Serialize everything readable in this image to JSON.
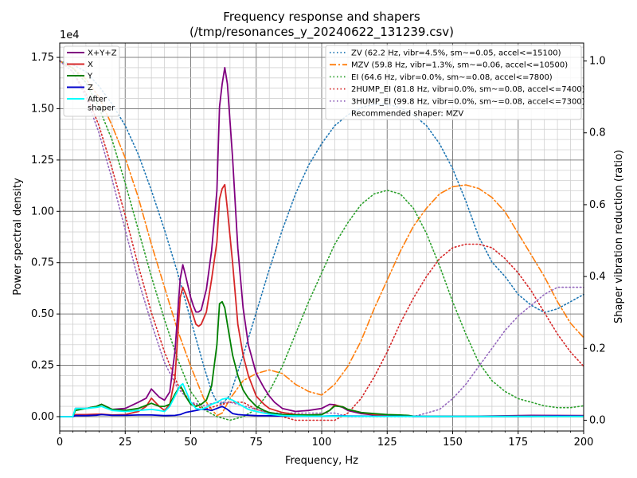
{
  "chart_data": {
    "type": "line",
    "title": "Frequency response and shapers",
    "subtitle": "(/tmp/resonances_y_20240622_131239.csv)",
    "xlabel": "Frequency, Hz",
    "ylabel": "Power spectral density",
    "y2label": "Shaper vibration reduction (ratio)",
    "y_offset_label": "1e4",
    "xlim": [
      0,
      200
    ],
    "ylim": [
      -700,
      18200
    ],
    "y2lim": [
      -0.03,
      1.05
    ],
    "grid": true,
    "x_major_ticks": [
      0,
      25,
      50,
      75,
      100,
      125,
      150,
      175,
      200
    ],
    "x_tick_labels": [
      "0",
      "25",
      "50",
      "75",
      "100",
      "125",
      "150",
      "175",
      "200"
    ],
    "y_major_ticks": [
      0,
      2500,
      5000,
      7500,
      10000,
      12500,
      15000,
      17500
    ],
    "y_tick_labels": [
      "0.00",
      "0.25",
      "0.50",
      "0.75",
      "1.00",
      "1.25",
      "1.50",
      "1.75"
    ],
    "y2_major_ticks": [
      0.0,
      0.2,
      0.4,
      0.6,
      0.8,
      1.0
    ],
    "y2_tick_labels": [
      "0.0",
      "0.2",
      "0.4",
      "0.6",
      "0.8",
      "1.0"
    ],
    "legend_left": {
      "placement": "top-left",
      "entries": [
        "X+Y+Z",
        "X",
        "Y",
        "Z",
        "After\nshaper"
      ]
    },
    "legend_right": {
      "placement": "top-right",
      "entries": [
        "ZV (62.2 Hz, vibr=4.5%, sm~=0.05, accel<=15100)",
        "MZV (59.8 Hz, vibr=1.3%, sm~=0.06, accel<=10500)",
        "EI (64.6 Hz, vibr=0.0%, sm~=0.08, accel<=7800)",
        "2HUMP_EI (81.8 Hz, vibr=0.0%, sm~=0.08, accel<=7400)",
        "3HUMP_EI (99.8 Hz, vibr=0.0%, sm~=0.08, accel<=7300)"
      ],
      "note": "Recommended shaper: MZV"
    },
    "psd_series": [
      {
        "name": "X+Y+Z",
        "color": "#800080",
        "x": [
          0,
          5,
          6,
          10,
          14,
          16,
          20,
          25,
          30,
          33,
          35,
          38,
          40,
          42,
          44,
          46,
          47,
          48,
          50,
          51,
          52,
          53,
          54,
          56,
          58,
          60,
          61,
          62,
          63,
          64,
          66,
          68,
          70,
          72,
          75,
          78,
          80,
          82,
          85,
          90,
          95,
          100,
          103,
          105,
          108,
          110,
          115,
          120,
          125,
          130,
          133,
          135,
          140,
          150,
          160,
          180,
          200
        ],
        "y": [
          0,
          0,
          400,
          400,
          500,
          600,
          350,
          400,
          700,
          900,
          1350,
          950,
          800,
          1200,
          3200,
          6700,
          7400,
          6900,
          5800,
          5400,
          5100,
          5100,
          5200,
          6200,
          8100,
          11000,
          15100,
          16200,
          17000,
          16200,
          12600,
          8200,
          5300,
          3500,
          2100,
          1400,
          1000,
          700,
          400,
          250,
          300,
          400,
          600,
          580,
          450,
          300,
          150,
          80,
          80,
          50,
          20,
          10,
          10,
          10,
          20,
          60,
          50
        ]
      },
      {
        "name": "X",
        "color": "#d62728",
        "x": [
          0,
          5,
          6,
          10,
          14,
          16,
          20,
          25,
          30,
          33,
          35,
          38,
          40,
          42,
          44,
          46,
          47,
          48,
          50,
          51,
          52,
          53,
          54,
          56,
          58,
          60,
          61,
          62,
          63,
          64,
          66,
          68,
          70,
          72,
          75,
          78,
          80,
          85,
          90,
          95,
          100,
          103,
          105,
          108,
          110,
          115,
          120,
          125,
          130,
          133,
          135,
          140,
          150,
          160,
          180,
          200
        ],
        "y": [
          0,
          0,
          100,
          100,
          120,
          120,
          80,
          100,
          250,
          500,
          900,
          500,
          300,
          600,
          1900,
          5800,
          6300,
          6000,
          5300,
          4900,
          4500,
          4400,
          4500,
          5100,
          6700,
          8500,
          10600,
          11100,
          11300,
          10100,
          7500,
          4500,
          3000,
          2000,
          1000,
          600,
          400,
          200,
          100,
          80,
          100,
          300,
          560,
          480,
          350,
          200,
          100,
          60,
          40,
          20,
          10,
          10,
          10,
          10,
          10,
          10
        ]
      },
      {
        "name": "Y",
        "color": "#008000",
        "x": [
          0,
          5,
          6,
          10,
          14,
          16,
          20,
          25,
          30,
          35,
          38,
          40,
          42,
          44,
          46,
          47,
          48,
          50,
          52,
          54,
          56,
          58,
          60,
          61,
          62,
          63,
          64,
          66,
          68,
          70,
          72,
          75,
          78,
          80,
          85,
          90,
          95,
          100,
          103,
          105,
          108,
          110,
          115,
          120,
          125,
          130,
          133,
          135,
          140,
          150,
          200
        ],
        "y": [
          0,
          0,
          300,
          400,
          500,
          600,
          350,
          300,
          400,
          650,
          500,
          500,
          600,
          1100,
          1500,
          1300,
          1000,
          600,
          500,
          600,
          800,
          1500,
          3500,
          5500,
          5600,
          5300,
          4500,
          3000,
          2000,
          1300,
          900,
          500,
          300,
          200,
          100,
          80,
          80,
          100,
          300,
          520,
          480,
          350,
          200,
          150,
          100,
          80,
          60,
          20,
          10,
          10,
          10
        ]
      },
      {
        "name": "Z",
        "color": "#0000cd",
        "x": [
          0,
          5,
          6,
          10,
          14,
          16,
          20,
          25,
          30,
          35,
          40,
          44,
          46,
          48,
          50,
          52,
          54,
          56,
          58,
          60,
          62,
          64,
          66,
          68,
          70,
          75,
          80,
          85,
          90,
          95,
          100,
          105,
          110,
          120,
          130,
          135,
          140,
          150,
          160,
          180,
          190,
          200
        ],
        "y": [
          0,
          0,
          50,
          50,
          70,
          100,
          60,
          60,
          80,
          80,
          50,
          60,
          100,
          200,
          250,
          300,
          350,
          350,
          300,
          400,
          500,
          350,
          150,
          100,
          80,
          50,
          40,
          30,
          20,
          20,
          20,
          40,
          30,
          20,
          20,
          10,
          10,
          10,
          10,
          10,
          30,
          20
        ]
      },
      {
        "name": "After\nshaper",
        "color": "#00ffff",
        "x": [
          0,
          5,
          6,
          10,
          14,
          16,
          20,
          25,
          30,
          35,
          38,
          40,
          42,
          44,
          46,
          47,
          48,
          50,
          52,
          54,
          56,
          58,
          60,
          62,
          64,
          66,
          68,
          70,
          72,
          75,
          80,
          85,
          90,
          95,
          100,
          105,
          110,
          120,
          130,
          140,
          150,
          200
        ],
        "y": [
          0,
          0,
          400,
          400,
          450,
          500,
          300,
          250,
          300,
          350,
          300,
          250,
          500,
          1000,
          1500,
          1600,
          1300,
          700,
          400,
          350,
          450,
          600,
          700,
          850,
          900,
          800,
          650,
          500,
          350,
          250,
          120,
          50,
          30,
          20,
          20,
          30,
          20,
          10,
          10,
          10,
          10,
          10
        ]
      }
    ],
    "shaper_series": [
      {
        "name": "ZV (62.2 Hz, vibr=4.5%, sm~=0.05, accel<=15100)",
        "color": "#1f77b4",
        "style": "dotted",
        "x": [
          0,
          5,
          10,
          15,
          20,
          25,
          30,
          35,
          40,
          45,
          50,
          55,
          58,
          60,
          62,
          65,
          70,
          75,
          80,
          85,
          90,
          95,
          100,
          105,
          110,
          115,
          120,
          125,
          130,
          135,
          140,
          145,
          150,
          155,
          160,
          165,
          170,
          175,
          180,
          185,
          190,
          195,
          200
        ],
        "y": [
          1.0,
          0.99,
          0.97,
          0.93,
          0.88,
          0.82,
          0.74,
          0.64,
          0.53,
          0.41,
          0.28,
          0.15,
          0.08,
          0.05,
          0.045,
          0.07,
          0.18,
          0.3,
          0.42,
          0.53,
          0.63,
          0.71,
          0.77,
          0.82,
          0.85,
          0.87,
          0.88,
          0.88,
          0.87,
          0.85,
          0.82,
          0.77,
          0.7,
          0.61,
          0.51,
          0.44,
          0.4,
          0.35,
          0.32,
          0.3,
          0.31,
          0.33,
          0.35
        ]
      },
      {
        "name": "MZV (59.8 Hz, vibr=1.3%, sm~=0.06, accel<=10500)",
        "color": "#ff7f0e",
        "style": "dashdot",
        "x": [
          0,
          5,
          10,
          15,
          20,
          25,
          30,
          35,
          40,
          45,
          50,
          55,
          58,
          60,
          62,
          65,
          70,
          75,
          80,
          85,
          90,
          95,
          100,
          105,
          110,
          115,
          120,
          125,
          130,
          135,
          140,
          145,
          150,
          155,
          160,
          165,
          170,
          175,
          180,
          185,
          190,
          195,
          200
        ],
        "y": [
          1.0,
          0.98,
          0.95,
          0.9,
          0.82,
          0.73,
          0.62,
          0.49,
          0.37,
          0.25,
          0.15,
          0.06,
          0.03,
          0.013,
          0.02,
          0.06,
          0.11,
          0.13,
          0.14,
          0.13,
          0.1,
          0.08,
          0.07,
          0.1,
          0.15,
          0.22,
          0.31,
          0.39,
          0.47,
          0.54,
          0.59,
          0.63,
          0.65,
          0.655,
          0.645,
          0.62,
          0.58,
          0.52,
          0.46,
          0.4,
          0.33,
          0.27,
          0.23
        ]
      },
      {
        "name": "EI (64.6 Hz, vibr=0.0%, sm~=0.08, accel<=7800)",
        "color": "#2ca02c",
        "style": "dotted",
        "x": [
          0,
          5,
          10,
          15,
          20,
          25,
          30,
          35,
          40,
          45,
          50,
          55,
          60,
          65,
          70,
          75,
          80,
          85,
          90,
          95,
          100,
          105,
          110,
          115,
          120,
          125,
          130,
          135,
          140,
          145,
          150,
          155,
          160,
          165,
          170,
          175,
          180,
          185,
          190,
          195,
          200
        ],
        "y": [
          1.0,
          0.98,
          0.94,
          0.87,
          0.78,
          0.66,
          0.53,
          0.4,
          0.28,
          0.17,
          0.08,
          0.03,
          0.01,
          0.0,
          0.01,
          0.03,
          0.08,
          0.15,
          0.24,
          0.33,
          0.41,
          0.49,
          0.55,
          0.6,
          0.63,
          0.64,
          0.63,
          0.59,
          0.52,
          0.43,
          0.33,
          0.24,
          0.16,
          0.11,
          0.08,
          0.06,
          0.05,
          0.04,
          0.035,
          0.035,
          0.04
        ]
      },
      {
        "name": "2HUMP_EI (81.8 Hz, vibr=0.0%, sm~=0.08, accel<=7400)",
        "color": "#d62728",
        "style": "dotted",
        "x": [
          0,
          5,
          10,
          15,
          20,
          25,
          30,
          35,
          40,
          45,
          50,
          55,
          60,
          65,
          70,
          75,
          80,
          85,
          90,
          95,
          100,
          105,
          110,
          115,
          120,
          125,
          130,
          135,
          140,
          145,
          150,
          155,
          160,
          165,
          170,
          175,
          180,
          185,
          190,
          195,
          200
        ],
        "y": [
          1.0,
          0.97,
          0.91,
          0.82,
          0.7,
          0.57,
          0.43,
          0.3,
          0.19,
          0.1,
          0.05,
          0.03,
          0.04,
          0.05,
          0.05,
          0.03,
          0.02,
          0.01,
          0.0,
          0.0,
          0.0,
          0.0,
          0.02,
          0.06,
          0.12,
          0.19,
          0.27,
          0.34,
          0.4,
          0.45,
          0.48,
          0.49,
          0.49,
          0.48,
          0.45,
          0.41,
          0.36,
          0.3,
          0.24,
          0.19,
          0.15
        ]
      },
      {
        "name": "3HUMP_EI (99.8 Hz, vibr=0.0%, sm~=0.08, accel<=7300)",
        "color": "#9467bd",
        "style": "dotted",
        "x": [
          0,
          5,
          10,
          15,
          20,
          25,
          30,
          35,
          40,
          45,
          50,
          55,
          60,
          65,
          70,
          75,
          80,
          85,
          90,
          95,
          100,
          105,
          110,
          115,
          120,
          125,
          130,
          135,
          140,
          145,
          150,
          155,
          160,
          165,
          170,
          175,
          180,
          185,
          190,
          195,
          200
        ],
        "y": [
          1.0,
          0.97,
          0.9,
          0.8,
          0.67,
          0.53,
          0.39,
          0.27,
          0.16,
          0.09,
          0.05,
          0.04,
          0.05,
          0.05,
          0.04,
          0.03,
          0.02,
          0.02,
          0.02,
          0.02,
          0.02,
          0.02,
          0.01,
          0.01,
          0.01,
          0.01,
          0.01,
          0.01,
          0.02,
          0.03,
          0.06,
          0.1,
          0.15,
          0.2,
          0.25,
          0.29,
          0.32,
          0.35,
          0.37,
          0.37,
          0.37
        ]
      }
    ]
  }
}
